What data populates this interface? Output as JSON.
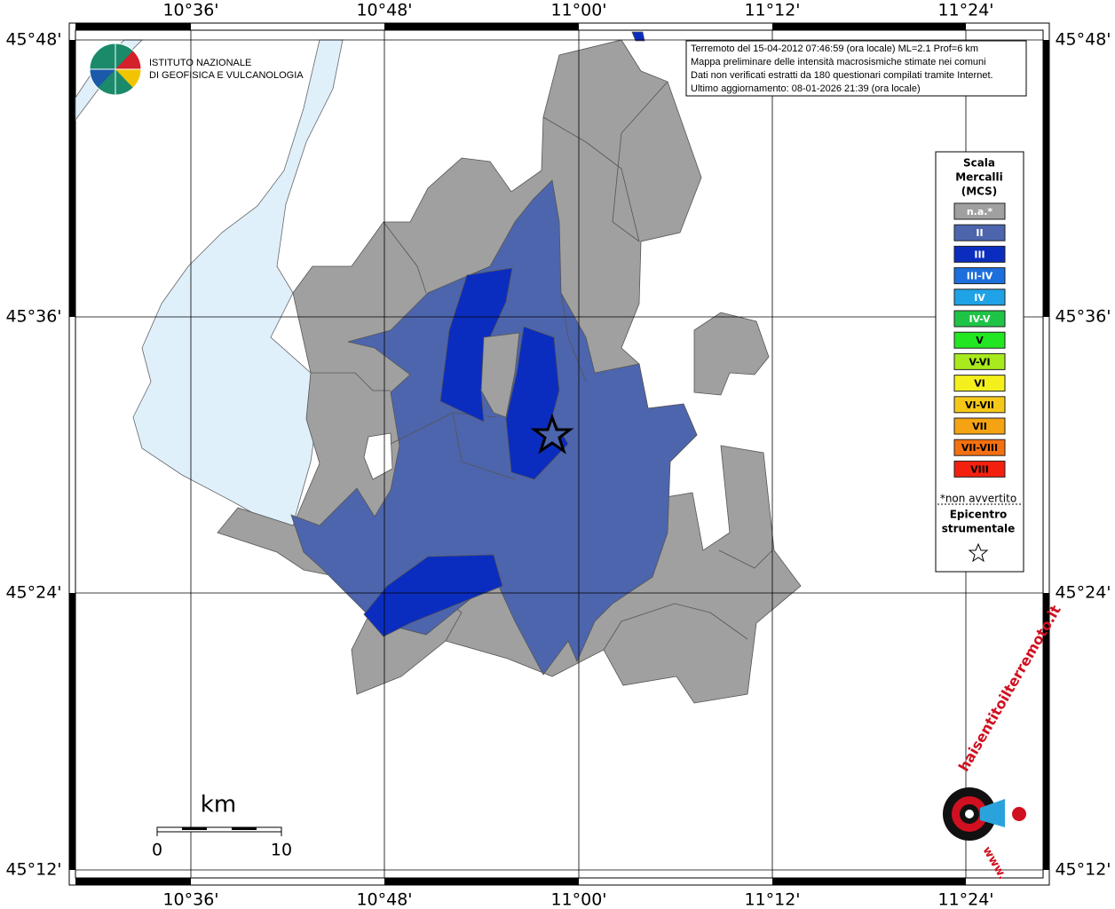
{
  "axes": {
    "top_labels": [
      "10°36'",
      "10°48'",
      "11°00'",
      "11°12'",
      "11°24'"
    ],
    "bottom_labels": [
      "10°36'",
      "10°48'",
      "11°00'",
      "11°12'",
      "11°24'"
    ],
    "left_labels": [
      "45°48'",
      "45°36'",
      "45°24'",
      "45°12'"
    ],
    "right_labels": [
      "45°48'",
      "45°36'",
      "45°24'",
      "45°12'"
    ]
  },
  "info_box": {
    "lines": [
      "Terremoto del 15-04-2012 07:46:59 (ora locale) ML=2.1 Prof=6 km",
      "Mappa preliminare delle intensità macrosismiche stimate nei comuni",
      "Dati non verificati estratti da 180 questionari compilati tramite Internet.",
      "Ultimo aggiornamento: 08-01-2026 21:39 (ora locale)"
    ]
  },
  "logo": {
    "lines": [
      "ISTITUTO NAZIONALE",
      "DI GEOFISICA E VULCANOLOGIA"
    ]
  },
  "legend": {
    "title_lines": [
      "Scala",
      "Mercalli",
      "(MCS)"
    ],
    "items": [
      {
        "label": "n.a.*",
        "color": "#a0a0a0"
      },
      {
        "label": "II",
        "color": "#4d65ad"
      },
      {
        "label": "III",
        "color": "#0b2dbf"
      },
      {
        "label": "III-IV",
        "color": "#1c6fdc"
      },
      {
        "label": "IV",
        "color": "#1fa2e6"
      },
      {
        "label": "IV-V",
        "color": "#1fc447"
      },
      {
        "label": "V",
        "color": "#22e622"
      },
      {
        "label": "V-VI",
        "color": "#a8ea1e"
      },
      {
        "label": "VI",
        "color": "#f3f01e"
      },
      {
        "label": "VI-VII",
        "color": "#f5c818"
      },
      {
        "label": "VII",
        "color": "#f5a312"
      },
      {
        "label": "VII-VIII",
        "color": "#f57010"
      },
      {
        "label": "VIII",
        "color": "#f3200f"
      }
    ],
    "note": "*non avvertito",
    "epicenter_lines": [
      "Epicentro",
      "strumentale"
    ]
  },
  "scale_bar": {
    "unit": "km",
    "labels": [
      "0",
      "10"
    ]
  },
  "watermark": {
    "text": "haisentitoilterremoto.it",
    "prefix": "www."
  }
}
